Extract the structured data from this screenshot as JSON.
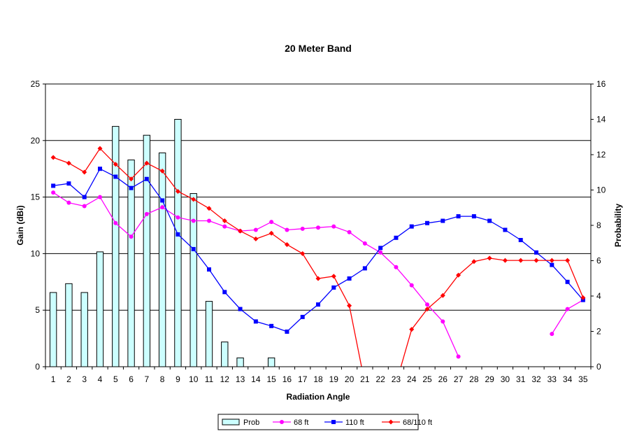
{
  "chart_data": {
    "type": "bar",
    "title": "",
    "subtitle": "20 Meter Band",
    "xlabel": "Radiation Angle",
    "ylabel": "Gain (dBi)",
    "y2label": "Probability",
    "categories": [
      "1",
      "2",
      "3",
      "4",
      "5",
      "6",
      "7",
      "8",
      "9",
      "10",
      "11",
      "12",
      "13",
      "14",
      "15",
      "16",
      "17",
      "18",
      "19",
      "20",
      "21",
      "22",
      "23",
      "24",
      "25",
      "26",
      "27",
      "28",
      "29",
      "30",
      "31",
      "32",
      "33",
      "34",
      "35"
    ],
    "ylim": [
      0,
      25
    ],
    "y2lim": [
      0,
      16
    ],
    "yticks": [
      0,
      5,
      10,
      15,
      20,
      25
    ],
    "y2ticks": [
      0,
      2,
      4,
      6,
      8,
      10,
      12,
      14,
      16
    ],
    "grid": true,
    "legend_position": "bottom",
    "series": [
      {
        "name": "Prob",
        "kind": "bar",
        "axis": "right",
        "color": "#ccffff",
        "values": [
          4.2,
          4.7,
          4.2,
          6.5,
          13.6,
          11.7,
          13.1,
          12.1,
          14.0,
          9.8,
          3.7,
          1.4,
          0.5,
          null,
          0.5,
          null,
          null,
          null,
          null,
          null,
          null,
          null,
          null,
          null,
          null,
          null,
          null,
          null,
          null,
          null,
          null,
          null,
          null,
          null,
          null
        ]
      },
      {
        "name": "68 ft",
        "kind": "line",
        "axis": "left",
        "color": "#ff00ff",
        "marker": "circle",
        "values": [
          15.4,
          14.5,
          14.2,
          15.0,
          12.7,
          11.5,
          13.5,
          14.1,
          13.2,
          12.9,
          12.9,
          12.4,
          12.0,
          12.1,
          12.8,
          12.1,
          12.2,
          12.3,
          12.4,
          11.9,
          10.9,
          10.1,
          8.8,
          7.2,
          5.5,
          4.0,
          0.9,
          null,
          null,
          null,
          null,
          null,
          2.9,
          5.1,
          5.9
        ]
      },
      {
        "name": "110 ft",
        "kind": "line",
        "axis": "left",
        "color": "#0000ff",
        "marker": "square",
        "values": [
          16.0,
          16.2,
          15.0,
          17.5,
          16.8,
          15.8,
          16.6,
          14.7,
          11.7,
          10.4,
          8.6,
          6.6,
          5.1,
          4.0,
          3.6,
          3.1,
          4.4,
          5.5,
          7.0,
          7.8,
          8.7,
          10.5,
          11.4,
          12.4,
          12.7,
          12.9,
          13.3,
          13.3,
          12.9,
          12.1,
          11.2,
          10.1,
          9.0,
          7.5,
          5.9
        ]
      },
      {
        "name": "68/110 ft",
        "kind": "line",
        "axis": "left",
        "color": "#ff0000",
        "marker": "diamond",
        "values": [
          18.5,
          18.0,
          17.2,
          19.3,
          17.9,
          16.6,
          18.0,
          17.3,
          15.5,
          14.8,
          14.0,
          12.9,
          12.0,
          11.3,
          11.8,
          10.8,
          10.0,
          7.8,
          8.0,
          5.4,
          -1.5,
          null,
          -1.5,
          3.3,
          5.1,
          6.3,
          8.1,
          9.3,
          9.6,
          9.4,
          9.4,
          9.4,
          9.4,
          9.4,
          6.1
        ]
      }
    ]
  }
}
